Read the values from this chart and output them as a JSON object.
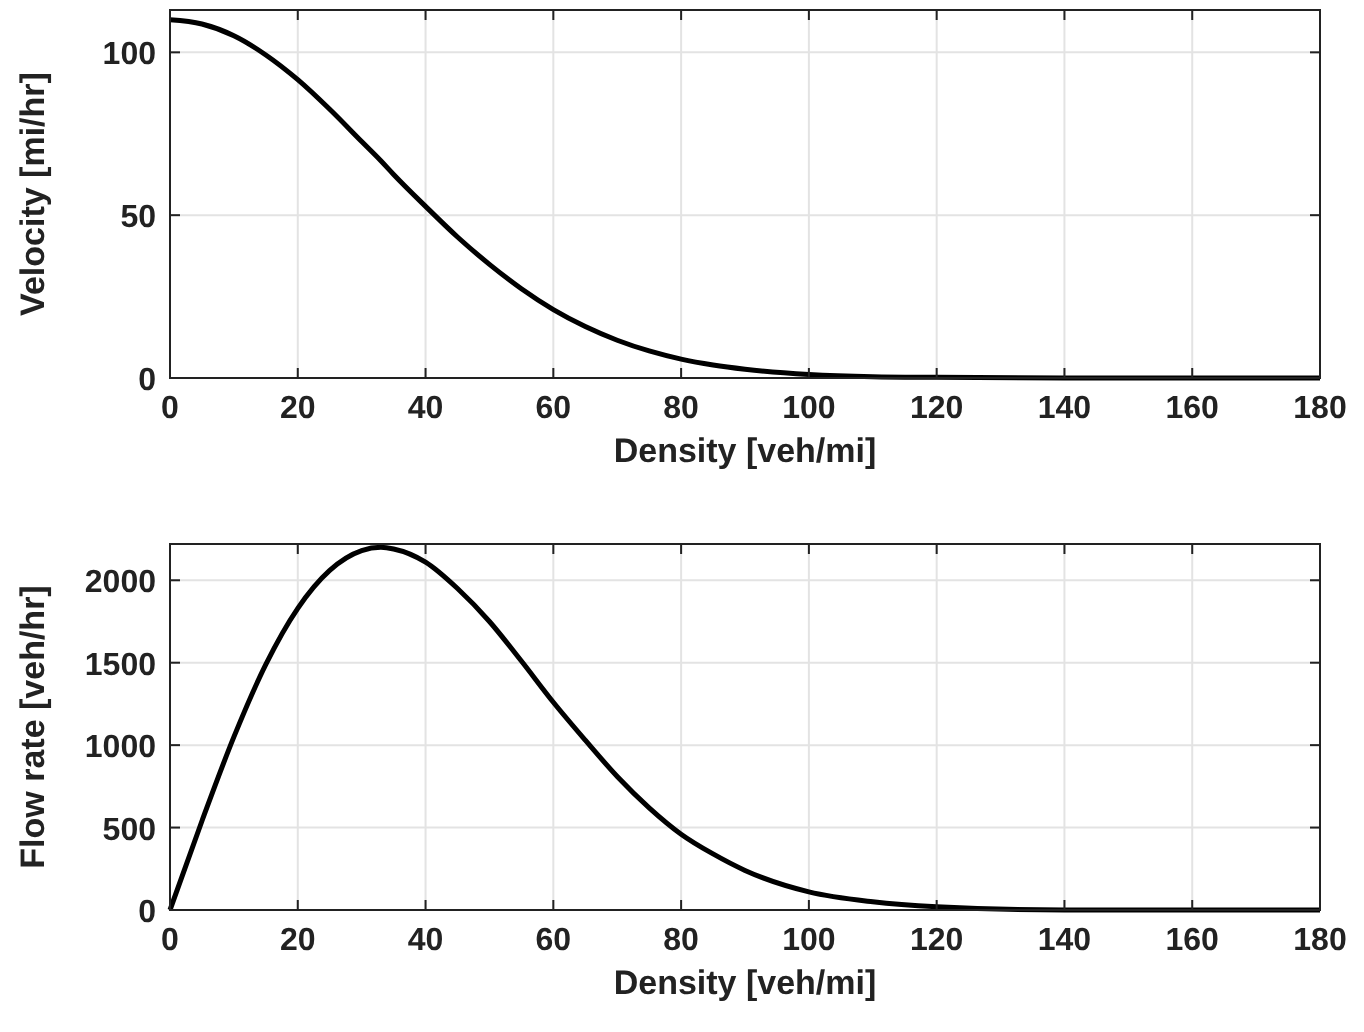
{
  "chart_data": [
    {
      "type": "line",
      "xlabel": "Density [veh/mi]",
      "ylabel": "Velocity [mi/hr]",
      "x": [
        0,
        5,
        10,
        15,
        20,
        25,
        30,
        33,
        35,
        40,
        45,
        50,
        55,
        60,
        65,
        70,
        75,
        80,
        85,
        90,
        100,
        110,
        120,
        140,
        160,
        180
      ],
      "series": [
        {
          "color": "#000000",
          "values": [
            110,
            108.7,
            105.1,
            99.2,
            91.6,
            82.5,
            72.6,
            66.7,
            62.5,
            52.7,
            43.3,
            34.9,
            27.4,
            21,
            15.8,
            11.6,
            8.3,
            5.8,
            4,
            2.7,
            1.1,
            0.4,
            0.2,
            0,
            0,
            0
          ]
        }
      ],
      "xlim": [
        0,
        180
      ],
      "xticks": [
        0,
        20,
        40,
        60,
        80,
        100,
        120,
        140,
        160,
        180
      ],
      "ylim": [
        0,
        113
      ],
      "yticks": [
        0,
        50,
        100
      ],
      "grid": true,
      "marker": "none",
      "line_style": "solid"
    },
    {
      "type": "line",
      "xlabel": "Density [veh/mi]",
      "ylabel": "Flow rate [veh/hr]",
      "x": [
        0,
        5,
        10,
        15,
        20,
        25,
        30,
        33,
        35,
        40,
        45,
        50,
        55,
        60,
        65,
        70,
        75,
        80,
        85,
        90,
        100,
        110,
        120,
        140,
        160,
        180
      ],
      "series": [
        {
          "color": "#000000",
          "values": [
            0,
            540,
            1050,
            1490,
            1830,
            2060,
            2180,
            2200,
            2190,
            2110,
            1950,
            1750,
            1510,
            1260,
            1030,
            810,
            620,
            460,
            340,
            240,
            110,
            50,
            20,
            0,
            0,
            0
          ]
        }
      ],
      "xlim": [
        0,
        180
      ],
      "xticks": [
        0,
        20,
        40,
        60,
        80,
        100,
        120,
        140,
        160,
        180
      ],
      "ylim": [
        0,
        2220
      ],
      "yticks": [
        0,
        500,
        1000,
        1500,
        2000
      ],
      "grid": true,
      "marker": "none",
      "line_style": "solid"
    }
  ]
}
